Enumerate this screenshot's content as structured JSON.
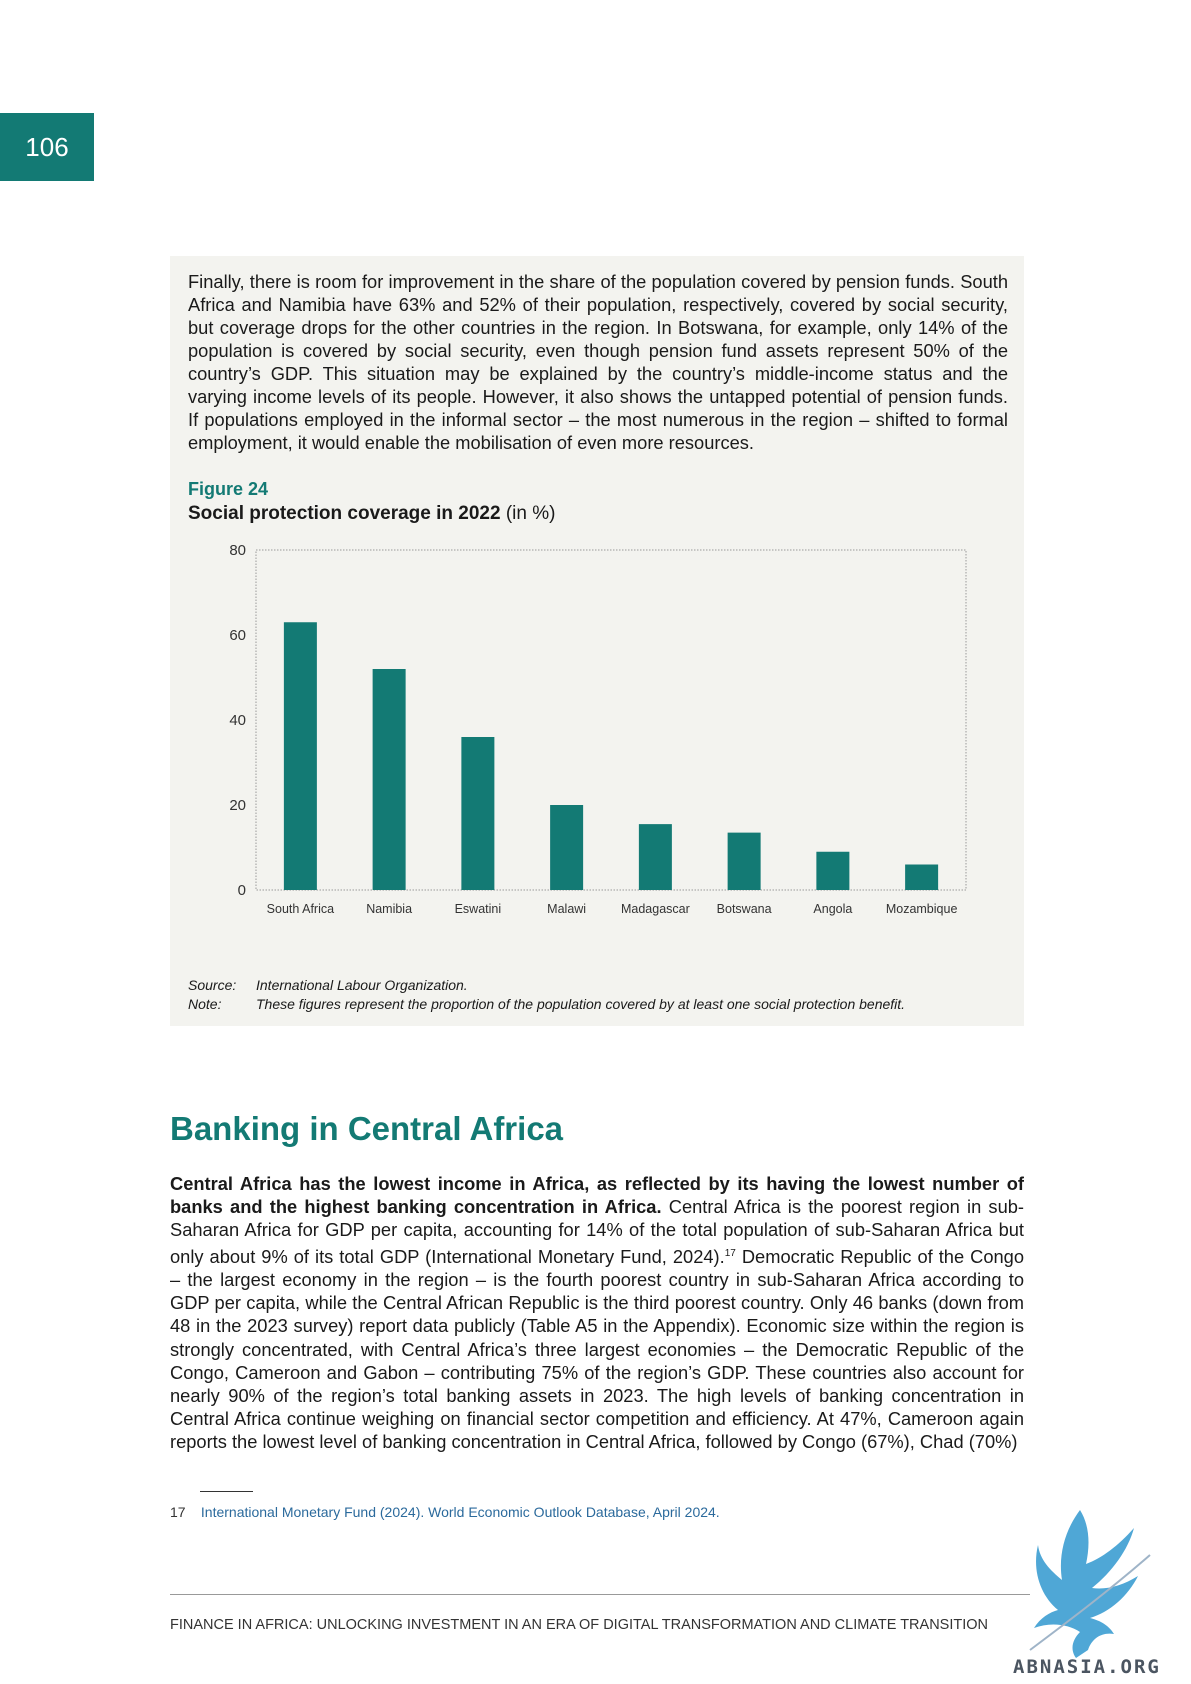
{
  "page_number": "106",
  "intro_paragraph": "Finally, there is room for improvement in the share of the population covered by pension funds. South Africa and Namibia have 63% and 52% of their population, respectively, covered by social security, but coverage drops for the other countries in the region. In Botswana, for example, only 14% of the population is covered by social security, even though pension fund assets represent 50% of the country’s GDP. This situation may be explained by the country’s middle-income status and the varying income levels of its people. However, it also shows the untapped potential of pension funds. If populations employed in the informal sector – the most numerous in the region – shifted to formal employment, it would enable the mobilisation of even more resources.",
  "figure": {
    "label": "Figure 24",
    "title": "Social protection coverage in 2022",
    "unit": "(in %)",
    "source_key": "Source:",
    "source_value": "International Labour Organization.",
    "note_key": "Note:",
    "note_value": "These figures represent the proportion of the population covered by at least one social protection benefit."
  },
  "chart_data": {
    "type": "bar",
    "title": "Social protection coverage in 2022",
    "xlabel": "",
    "ylabel": "",
    "categories": [
      "South Africa",
      "Namibia",
      "Eswatini",
      "Malawi",
      "Madagascar",
      "Botswana",
      "Angola",
      "Mozambique"
    ],
    "values": [
      63,
      52,
      36,
      20,
      15.5,
      13.5,
      9,
      6
    ],
    "ylim": [
      0,
      80
    ],
    "yticks": [
      0,
      20,
      40,
      60,
      80
    ],
    "grid": false,
    "bar_color": "#137a74"
  },
  "section": {
    "heading": "Banking in Central Africa",
    "lead_bold": "Central Africa has the lowest income in Africa, as reflected by its having the lowest number of banks and the highest banking concentration in Africa.",
    "text_part1": " Central Africa is the poorest region in sub-Saharan Africa for GDP per capita, accounting for 14% of the total population of sub-Saharan Africa but only about 9% of its total GDP (International Monetary Fund, 2024).",
    "footnote_marker": "17",
    "text_part2": " Democratic Republic of the Congo – the largest economy in the region – is the fourth poorest country in sub-Saharan Africa according to GDP per capita, while the Central African Republic is the third poorest country. Only 46 banks (down from 48 in the 2023 survey) report data publicly (Table A5 in the Appendix). Economic size within the region is strongly concentrated, with Central Africa’s three largest economies – the Democratic Republic of the Congo, Cameroon and Gabon – contributing 75% of the region’s GDP. These countries also account for nearly 90% of the region’s total banking assets in 2023. The high levels of banking concentration in Central Africa continue weighing on financial sector competition and efficiency. At 47%, Cameroon again reports the lowest level of banking concentration in Central Africa, followed by Congo (67%), Chad (70%)"
  },
  "footnote": {
    "number": "17",
    "text": "International Monetary Fund (2024). World Economic Outlook Database, April 2024."
  },
  "footer": {
    "text": "FINANCE IN AFRICA: UNLOCKING INVESTMENT IN AN ERA OF DIGITAL TRANSFORMATION AND CLIMATE TRANSITION"
  },
  "watermark": {
    "text": "ABNASIA.ORG",
    "icon": "griffin-logo-icon",
    "color": "#4fa7d6"
  }
}
